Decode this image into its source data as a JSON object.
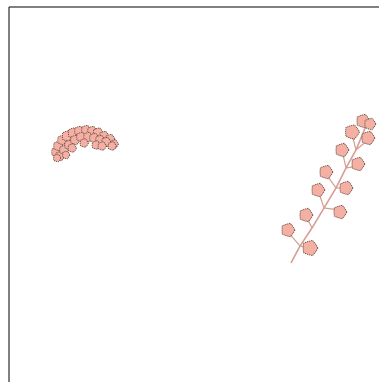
{
  "canvas": {
    "background": "#ffffff",
    "frame_color": "#000000"
  },
  "clusters": [
    {
      "name": "left-leaf-cluster",
      "shape": "arched cluster of round leaves",
      "fill_color": "#f4b0a2",
      "edge_color": "#6b4a44"
    },
    {
      "name": "right-leaf-branch",
      "shape": "diagonal branch with paired round leaves",
      "fill_color": "#f4b0a2",
      "edge_color": "#6b4a44",
      "stem_color": "#d79d92"
    }
  ]
}
